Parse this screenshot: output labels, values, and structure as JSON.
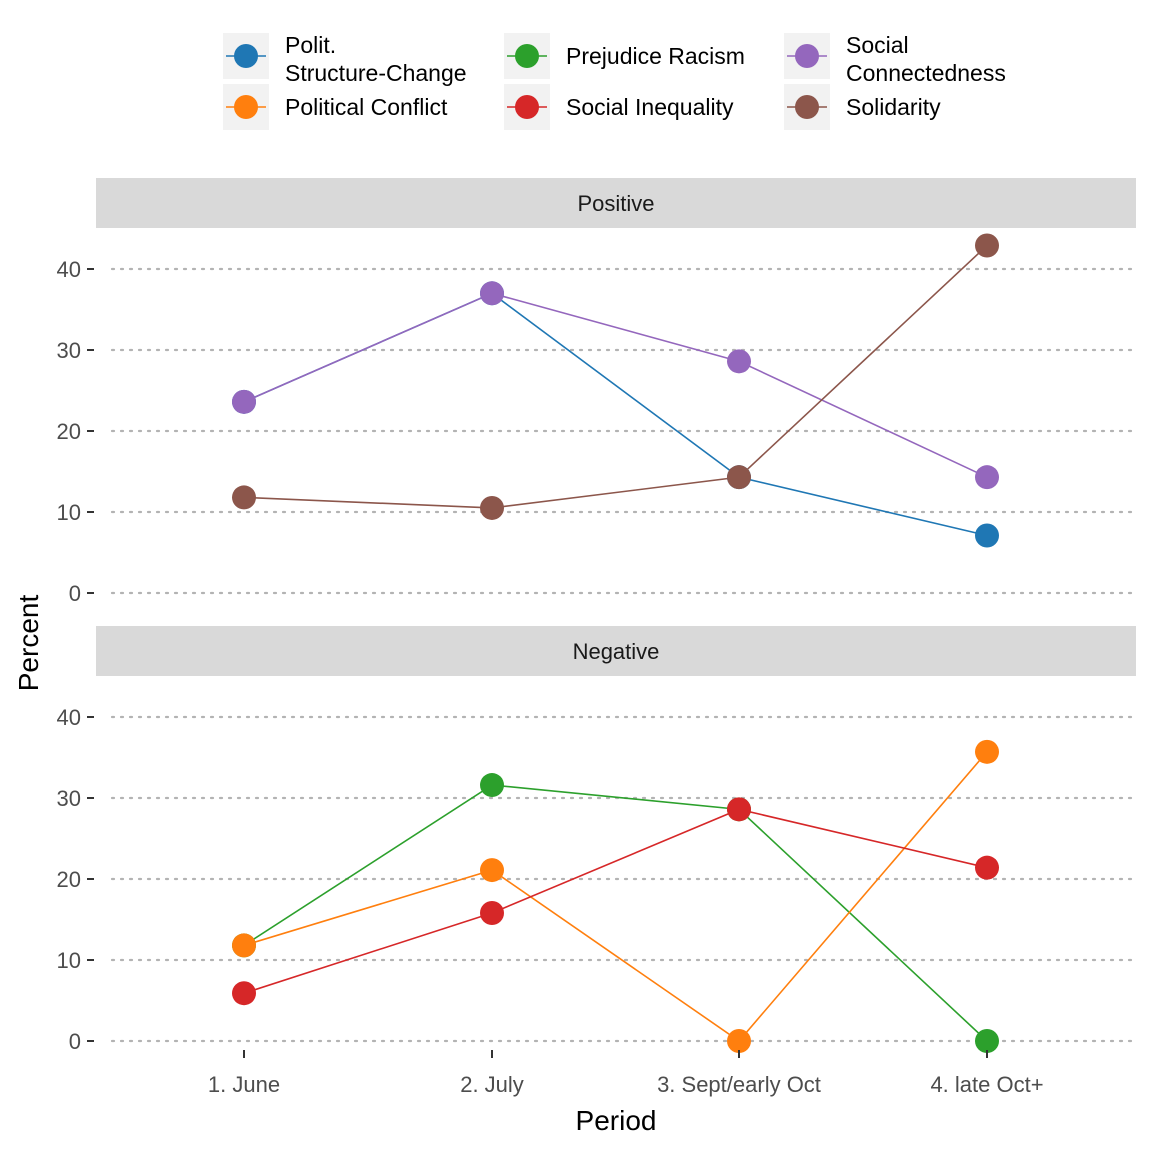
{
  "chart_data": {
    "type": "line",
    "xlabel": "Period",
    "ylabel": "Percent",
    "categories": [
      "1. June",
      "2. July",
      "3. Sept/early Oct",
      "4. late Oct+"
    ],
    "ylim": [
      0,
      45
    ],
    "yticks": [
      0,
      10,
      20,
      30,
      40
    ],
    "grid": "horizontal-dotted",
    "legend_position": "top",
    "legend": [
      {
        "key": "polit",
        "lines": [
          "Polit.",
          "Structure-Change"
        ],
        "color": "#1f77b4"
      },
      {
        "key": "conflict",
        "lines": [
          "Political Conflict"
        ],
        "color": "#ff7f0e"
      },
      {
        "key": "racism",
        "lines": [
          "Prejudice Racism"
        ],
        "color": "#2ca02c"
      },
      {
        "key": "inequality",
        "lines": [
          "Social Inequality"
        ],
        "color": "#d62728"
      },
      {
        "key": "connected",
        "lines": [
          "Social",
          "Connectedness"
        ],
        "color": "#9467bd"
      },
      {
        "key": "solidarity",
        "lines": [
          "Solidarity"
        ],
        "color": "#8c564b"
      }
    ],
    "panels": [
      {
        "label": "Positive",
        "series": [
          {
            "key": "polit",
            "values": [
              23.6,
              37.0,
              14.3,
              7.1
            ]
          },
          {
            "key": "connected",
            "values": [
              23.6,
              37.0,
              28.6,
              14.3
            ]
          },
          {
            "key": "solidarity",
            "values": [
              11.8,
              10.5,
              14.3,
              42.9
            ]
          }
        ]
      },
      {
        "label": "Negative",
        "series": [
          {
            "key": "racism",
            "values": [
              11.8,
              31.6,
              28.6,
              0.0
            ]
          },
          {
            "key": "conflict",
            "values": [
              11.8,
              21.1,
              0.0,
              35.7
            ]
          },
          {
            "key": "inequality",
            "values": [
              5.9,
              15.8,
              28.6,
              21.4
            ]
          }
        ]
      }
    ]
  }
}
